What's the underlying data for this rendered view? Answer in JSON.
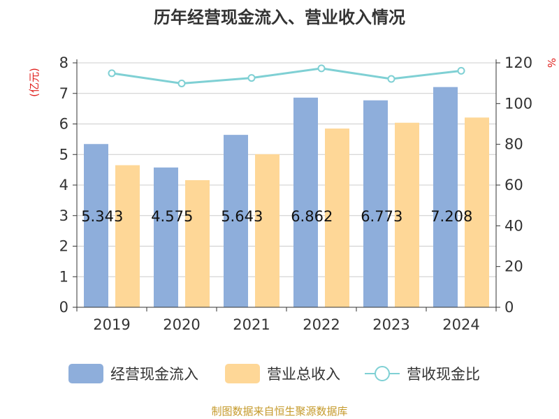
{
  "chart_data": {
    "type": "bar",
    "title": "历年经营现金流入、营业收入情况",
    "categories": [
      "2019",
      "2020",
      "2021",
      "2022",
      "2023",
      "2024"
    ],
    "series": [
      {
        "name": "经营现金流入",
        "kind": "bar",
        "axis": "left",
        "color": "#8eaedb",
        "values": [
          5.343,
          4.575,
          5.643,
          6.862,
          6.773,
          7.208
        ]
      },
      {
        "name": "营业总收入",
        "kind": "bar",
        "axis": "left",
        "color": "#fed797",
        "values": [
          4.65,
          4.16,
          5.01,
          5.85,
          6.04,
          6.21
        ]
      },
      {
        "name": "营收现金比",
        "kind": "line",
        "axis": "right",
        "color": "#7fd0d4",
        "values": [
          114.9,
          109.9,
          112.6,
          117.3,
          112.1,
          116.1
        ]
      }
    ],
    "data_labels": [
      "5.343",
      "4.575",
      "5.643",
      "6.862",
      "6.773",
      "7.208"
    ],
    "y_left": {
      "label": "(亿元)",
      "ticks": [
        "0",
        "1",
        "2",
        "3",
        "4",
        "5",
        "6",
        "7",
        "8"
      ],
      "range": [
        0,
        8
      ]
    },
    "y_right": {
      "label": "%",
      "ticks": [
        "0",
        "20",
        "40",
        "60",
        "80",
        "100",
        "120"
      ],
      "range": [
        0,
        120
      ]
    },
    "grid": true,
    "legend_position": "bottom",
    "source": "制图数据来自恒生聚源数据库",
    "colors": {
      "axis_label": "#e0201d",
      "source": "#c59a2b",
      "text": "#333333",
      "grid": "#cccccc"
    }
  }
}
